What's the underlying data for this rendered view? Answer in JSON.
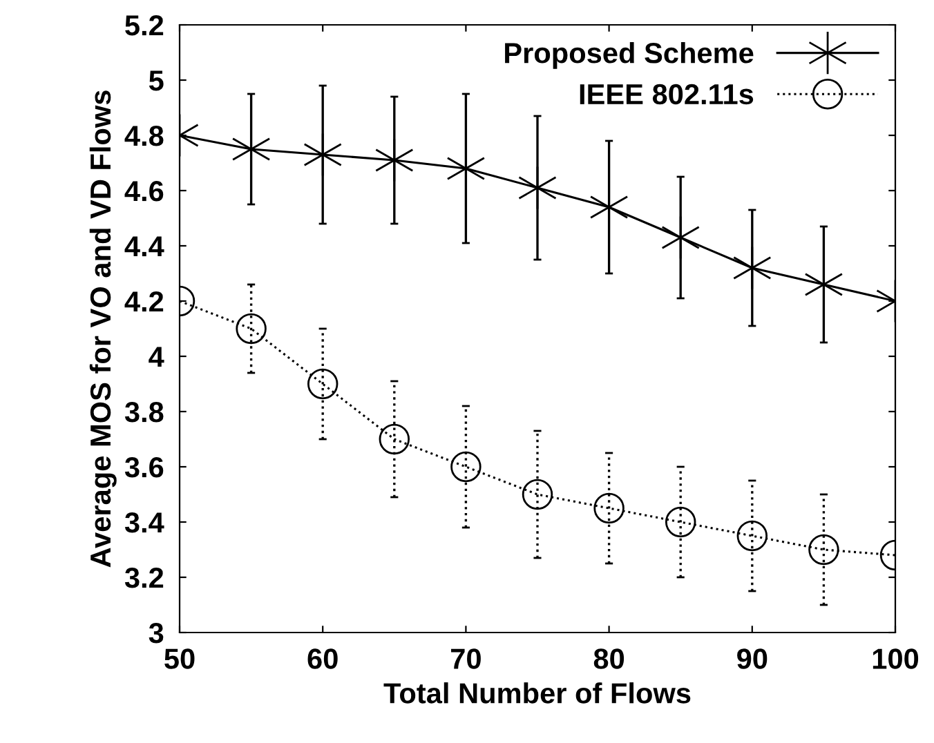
{
  "chart_data": {
    "type": "line",
    "xlabel": "Total Number of Flows",
    "ylabel": "Average MOS for VO and VD Flows",
    "x": [
      50,
      55,
      60,
      65,
      70,
      75,
      80,
      85,
      90,
      95,
      100
    ],
    "series": [
      {
        "name": "Proposed Scheme",
        "color": "#000000",
        "marker": "cross",
        "line_style": "solid",
        "values": [
          4.8,
          4.75,
          4.73,
          4.71,
          4.68,
          4.61,
          4.54,
          4.43,
          4.32,
          4.26,
          4.2
        ],
        "errors": [
          null,
          0.2,
          0.25,
          0.23,
          0.27,
          0.26,
          0.24,
          0.22,
          0.21,
          0.21,
          null
        ]
      },
      {
        "name": "IEEE 802.11s",
        "color": "#000000",
        "marker": "circle",
        "line_style": "dotted",
        "values": [
          4.2,
          4.1,
          3.9,
          3.7,
          3.6,
          3.5,
          3.45,
          3.4,
          3.35,
          3.3,
          3.28
        ],
        "errors": [
          null,
          0.16,
          0.2,
          0.21,
          0.22,
          0.23,
          0.2,
          0.2,
          0.2,
          0.2,
          null
        ]
      }
    ],
    "xlim": [
      50,
      100
    ],
    "xticks": [
      50,
      60,
      70,
      80,
      90,
      100
    ],
    "ylim": [
      3,
      5.2
    ],
    "yticks": [
      3,
      3.2,
      3.4,
      3.6,
      3.8,
      4,
      4.2,
      4.4,
      4.6,
      4.8,
      5,
      5.2
    ],
    "legend": "top right",
    "grid": false
  }
}
